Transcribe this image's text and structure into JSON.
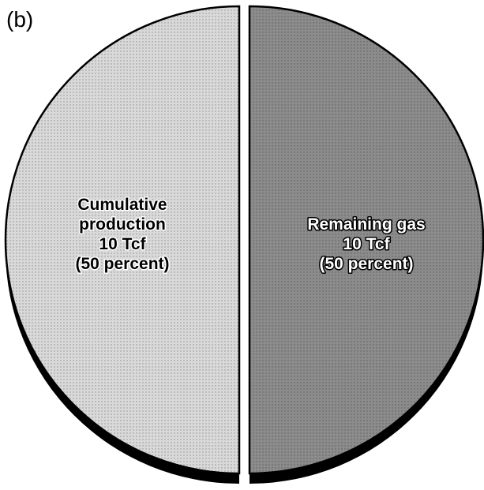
{
  "chart_data": {
    "type": "pie",
    "title": "(b)",
    "categories": [
      "Cumulative production",
      "Remaining gas"
    ],
    "values": [
      50,
      50
    ],
    "value_labels": [
      "(50 percent)",
      "(50 percent)"
    ],
    "volume_labels": [
      "10 Tcf",
      "10 Tcf"
    ],
    "colors": [
      "#d9d9d9",
      "#8c8c8c"
    ]
  }
}
